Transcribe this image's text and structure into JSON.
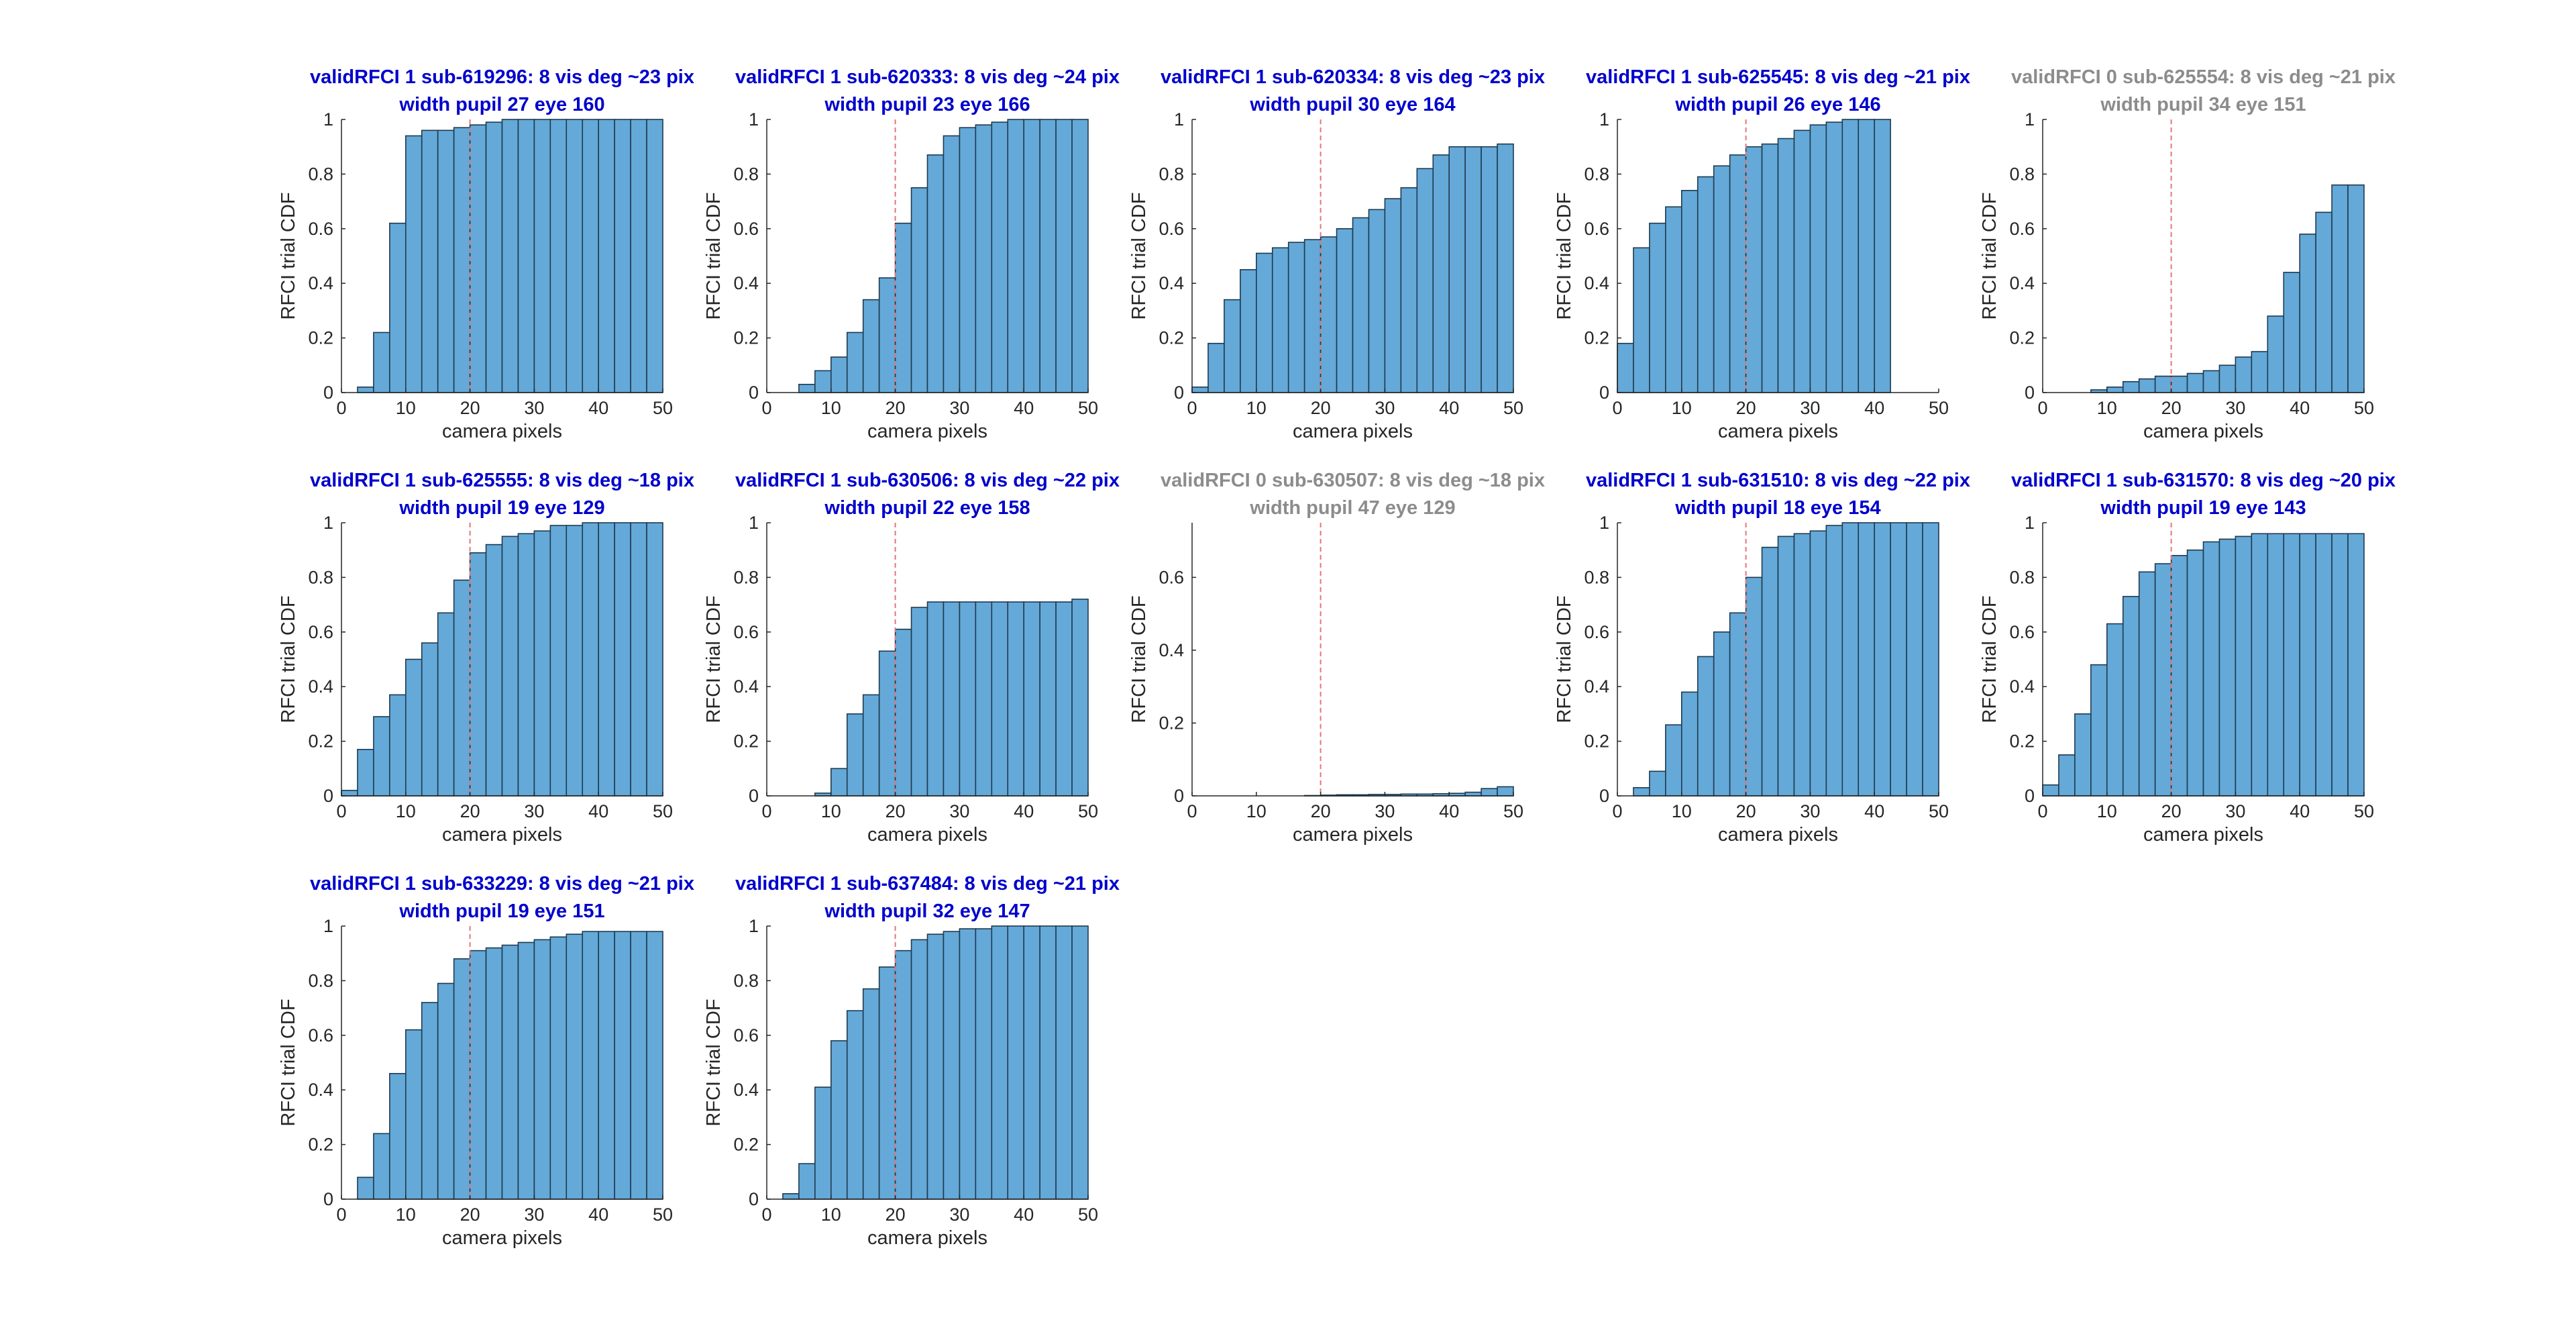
{
  "figure": {
    "colors": {
      "bar_fill": "#64a9d8",
      "bar_edge": "#1f3a4f",
      "ref_line": "#e0787a",
      "title_valid": "#0000cd",
      "title_invalid": "#8c8c8c",
      "axis": "#262626"
    }
  },
  "chart_data": [
    {
      "type": "bar",
      "title": [
        "validRFCI 1 sub-619296: 8 vis deg ~23 pix",
        "width pupil 27 eye 160"
      ],
      "valid": 1,
      "xlabel": "camera pixels",
      "ylabel": "RFCI trial CDF",
      "xlim": [
        0,
        50
      ],
      "ylim": [
        0,
        1
      ],
      "xticks": [
        0,
        10,
        20,
        30,
        40,
        50
      ],
      "yticks": [
        0,
        0.2,
        0.4,
        0.6,
        0.8,
        1
      ],
      "ytick_labels": [
        "0",
        "0.2",
        "0.4",
        "0.6",
        "0.8",
        "1"
      ],
      "bin_edges": [
        0,
        2.5,
        5,
        7.5,
        10,
        12.5,
        15,
        17.5,
        20,
        22.5,
        25,
        27.5,
        30,
        32.5,
        35,
        37.5,
        40,
        42.5,
        45,
        47.5,
        50
      ],
      "values": [
        0,
        0.02,
        0.22,
        0.62,
        0.94,
        0.96,
        0.96,
        0.97,
        0.98,
        0.99,
        1,
        1,
        1,
        1,
        1,
        1,
        1,
        1,
        1,
        1
      ],
      "reference_x": 20
    },
    {
      "type": "bar",
      "title": [
        "validRFCI 1 sub-620333: 8 vis deg ~24 pix",
        "width pupil 23 eye 166"
      ],
      "valid": 1,
      "xlabel": "camera pixels",
      "ylabel": "RFCI trial CDF",
      "xlim": [
        0,
        50
      ],
      "ylim": [
        0,
        1
      ],
      "xticks": [
        0,
        10,
        20,
        30,
        40,
        50
      ],
      "yticks": [
        0,
        0.2,
        0.4,
        0.6,
        0.8,
        1
      ],
      "ytick_labels": [
        "0",
        "0.2",
        "0.4",
        "0.6",
        "0.8",
        "1"
      ],
      "bin_edges": [
        0,
        2.5,
        5,
        7.5,
        10,
        12.5,
        15,
        17.5,
        20,
        22.5,
        25,
        27.5,
        30,
        32.5,
        35,
        37.5,
        40,
        42.5,
        45,
        47.5,
        50
      ],
      "values": [
        0,
        0,
        0.03,
        0.08,
        0.13,
        0.22,
        0.34,
        0.42,
        0.62,
        0.75,
        0.87,
        0.94,
        0.97,
        0.98,
        0.99,
        1,
        1,
        1,
        1,
        1
      ],
      "reference_x": 20
    },
    {
      "type": "bar",
      "title": [
        "validRFCI 1 sub-620334: 8 vis deg ~23 pix",
        "width pupil 30 eye 164"
      ],
      "valid": 1,
      "xlabel": "camera pixels",
      "ylabel": "RFCI trial CDF",
      "xlim": [
        0,
        50
      ],
      "ylim": [
        0,
        1
      ],
      "xticks": [
        0,
        10,
        20,
        30,
        40,
        50
      ],
      "yticks": [
        0,
        0.2,
        0.4,
        0.6,
        0.8,
        1
      ],
      "ytick_labels": [
        "0",
        "0.2",
        "0.4",
        "0.6",
        "0.8",
        "1"
      ],
      "bin_edges": [
        0,
        2.5,
        5,
        7.5,
        10,
        12.5,
        15,
        17.5,
        20,
        22.5,
        25,
        27.5,
        30,
        32.5,
        35,
        37.5,
        40,
        42.5,
        45,
        47.5,
        50
      ],
      "values": [
        0.02,
        0.18,
        0.34,
        0.45,
        0.51,
        0.53,
        0.55,
        0.56,
        0.57,
        0.6,
        0.64,
        0.67,
        0.71,
        0.75,
        0.82,
        0.87,
        0.9,
        0.9,
        0.9,
        0.91
      ],
      "reference_x": 20
    },
    {
      "type": "bar",
      "title": [
        "validRFCI 1 sub-625545: 8 vis deg ~21 pix",
        "width pupil 26 eye 146"
      ],
      "valid": 1,
      "xlabel": "camera pixels",
      "ylabel": "RFCI trial CDF",
      "xlim": [
        0,
        50
      ],
      "ylim": [
        0,
        1
      ],
      "xticks": [
        0,
        10,
        20,
        30,
        40,
        50
      ],
      "yticks": [
        0,
        0.2,
        0.4,
        0.6,
        0.8,
        1
      ],
      "ytick_labels": [
        "0",
        "0.2",
        "0.4",
        "0.6",
        "0.8",
        "1"
      ],
      "bin_edges": [
        0,
        2.5,
        5,
        7.5,
        10,
        12.5,
        15,
        17.5,
        20,
        22.5,
        25,
        27.5,
        30,
        32.5,
        35,
        37.5,
        40,
        42.5
      ],
      "values": [
        0.18,
        0.53,
        0.62,
        0.68,
        0.74,
        0.79,
        0.83,
        0.87,
        0.9,
        0.91,
        0.93,
        0.96,
        0.98,
        0.99,
        1,
        1,
        1
      ],
      "reference_x": 20
    },
    {
      "type": "bar",
      "title": [
        "validRFCI 0 sub-625554: 8 vis deg ~21 pix",
        "width pupil 34 eye 151"
      ],
      "valid": 0,
      "xlabel": "camera pixels",
      "ylabel": "RFCI trial CDF",
      "xlim": [
        0,
        50
      ],
      "ylim": [
        0,
        1
      ],
      "xticks": [
        0,
        10,
        20,
        30,
        40,
        50
      ],
      "yticks": [
        0,
        0.2,
        0.4,
        0.6,
        0.8,
        1
      ],
      "ytick_labels": [
        "0",
        "0.2",
        "0.4",
        "0.6",
        "0.8",
        "1"
      ],
      "bin_edges": [
        0,
        2.5,
        5,
        7.5,
        10,
        12.5,
        15,
        17.5,
        20,
        22.5,
        25,
        27.5,
        30,
        32.5,
        35,
        37.5,
        40,
        42.5,
        45,
        47.5,
        50
      ],
      "values": [
        0,
        0,
        0,
        0.01,
        0.02,
        0.04,
        0.05,
        0.06,
        0.06,
        0.07,
        0.08,
        0.1,
        0.13,
        0.15,
        0.28,
        0.44,
        0.58,
        0.66,
        0.76,
        0.76
      ],
      "reference_x": 20
    },
    {
      "type": "bar",
      "title": [
        "validRFCI 1 sub-625555: 8 vis deg ~18 pix",
        "width pupil 19 eye 129"
      ],
      "valid": 1,
      "xlabel": "camera pixels",
      "ylabel": "RFCI trial CDF",
      "xlim": [
        0,
        50
      ],
      "ylim": [
        0,
        1
      ],
      "xticks": [
        0,
        10,
        20,
        30,
        40,
        50
      ],
      "yticks": [
        0,
        0.2,
        0.4,
        0.6,
        0.8,
        1
      ],
      "ytick_labels": [
        "0",
        "0.2",
        "0.4",
        "0.6",
        "0.8",
        "1"
      ],
      "bin_edges": [
        0,
        2.5,
        5,
        7.5,
        10,
        12.5,
        15,
        17.5,
        20,
        22.5,
        25,
        27.5,
        30,
        32.5,
        35,
        37.5,
        40,
        42.5,
        45,
        47.5,
        50
      ],
      "values": [
        0.02,
        0.17,
        0.29,
        0.37,
        0.5,
        0.56,
        0.67,
        0.79,
        0.89,
        0.92,
        0.95,
        0.96,
        0.97,
        0.99,
        0.99,
        1,
        1,
        1,
        1,
        1
      ],
      "reference_x": 20
    },
    {
      "type": "bar",
      "title": [
        "validRFCI 1 sub-630506: 8 vis deg ~22 pix",
        "width pupil 22 eye 158"
      ],
      "valid": 1,
      "xlabel": "camera pixels",
      "ylabel": "RFCI trial CDF",
      "xlim": [
        0,
        50
      ],
      "ylim": [
        0,
        1
      ],
      "xticks": [
        0,
        10,
        20,
        30,
        40,
        50
      ],
      "yticks": [
        0,
        0.2,
        0.4,
        0.6,
        0.8,
        1
      ],
      "ytick_labels": [
        "0",
        "0.2",
        "0.4",
        "0.6",
        "0.8",
        "1"
      ],
      "bin_edges": [
        0,
        2.5,
        5,
        7.5,
        10,
        12.5,
        15,
        17.5,
        20,
        22.5,
        25,
        27.5,
        30,
        32.5,
        35,
        37.5,
        40,
        42.5,
        45,
        47.5,
        50
      ],
      "values": [
        0,
        0,
        0,
        0.01,
        0.1,
        0.3,
        0.37,
        0.53,
        0.61,
        0.69,
        0.71,
        0.71,
        0.71,
        0.71,
        0.71,
        0.71,
        0.71,
        0.71,
        0.71,
        0.72
      ],
      "reference_x": 20
    },
    {
      "type": "bar",
      "title": [
        "validRFCI 0 sub-630507: 8 vis deg ~18 pix",
        "width pupil 47 eye 129"
      ],
      "valid": 0,
      "xlabel": "camera pixels",
      "ylabel": "RFCI trial CDF",
      "xlim": [
        0,
        50
      ],
      "ylim": [
        0,
        0.75
      ],
      "xticks": [
        0,
        10,
        20,
        30,
        40,
        50
      ],
      "yticks": [
        0,
        0.2,
        0.4,
        0.6
      ],
      "ytick_labels": [
        "0",
        "0.2",
        "0.4",
        "0.6"
      ],
      "bin_edges": [
        0,
        2.5,
        5,
        7.5,
        10,
        12.5,
        15,
        17.5,
        20,
        22.5,
        25,
        27.5,
        30,
        32.5,
        35,
        37.5,
        40,
        42.5,
        45,
        47.5,
        50
      ],
      "values": [
        0,
        0,
        0,
        0,
        0,
        0,
        0,
        0.001,
        0.002,
        0.003,
        0.003,
        0.004,
        0.004,
        0.005,
        0.005,
        0.006,
        0.007,
        0.01,
        0.02,
        0.025
      ],
      "reference_x": 20
    },
    {
      "type": "bar",
      "title": [
        "validRFCI 1 sub-631510: 8 vis deg ~22 pix",
        "width pupil 18 eye 154"
      ],
      "valid": 1,
      "xlabel": "camera pixels",
      "ylabel": "RFCI trial CDF",
      "xlim": [
        0,
        50
      ],
      "ylim": [
        0,
        1
      ],
      "xticks": [
        0,
        10,
        20,
        30,
        40,
        50
      ],
      "yticks": [
        0,
        0.2,
        0.4,
        0.6,
        0.8,
        1
      ],
      "ytick_labels": [
        "0",
        "0.2",
        "0.4",
        "0.6",
        "0.8",
        "1"
      ],
      "bin_edges": [
        0,
        2.5,
        5,
        7.5,
        10,
        12.5,
        15,
        17.5,
        20,
        22.5,
        25,
        27.5,
        30,
        32.5,
        35,
        37.5,
        40,
        42.5,
        45,
        47.5,
        50
      ],
      "values": [
        0,
        0.03,
        0.09,
        0.26,
        0.38,
        0.51,
        0.6,
        0.67,
        0.8,
        0.91,
        0.95,
        0.96,
        0.97,
        0.99,
        1,
        1,
        1,
        1,
        1,
        1
      ],
      "reference_x": 20
    },
    {
      "type": "bar",
      "title": [
        "validRFCI 1 sub-631570: 8 vis deg ~20 pix",
        "width pupil 19 eye 143"
      ],
      "valid": 1,
      "xlabel": "camera pixels",
      "ylabel": "RFCI trial CDF",
      "xlim": [
        0,
        50
      ],
      "ylim": [
        0,
        1
      ],
      "xticks": [
        0,
        10,
        20,
        30,
        40,
        50
      ],
      "yticks": [
        0,
        0.2,
        0.4,
        0.6,
        0.8,
        1
      ],
      "ytick_labels": [
        "0",
        "0.2",
        "0.4",
        "0.6",
        "0.8",
        "1"
      ],
      "bin_edges": [
        0,
        2.5,
        5,
        7.5,
        10,
        12.5,
        15,
        17.5,
        20,
        22.5,
        25,
        27.5,
        30,
        32.5,
        35,
        37.5,
        40,
        42.5,
        45,
        47.5,
        50
      ],
      "values": [
        0.04,
        0.15,
        0.3,
        0.48,
        0.63,
        0.73,
        0.82,
        0.85,
        0.88,
        0.9,
        0.93,
        0.94,
        0.95,
        0.96,
        0.96,
        0.96,
        0.96,
        0.96,
        0.96,
        0.96
      ],
      "reference_x": 20
    },
    {
      "type": "bar",
      "title": [
        "validRFCI 1 sub-633229: 8 vis deg ~21 pix",
        "width pupil 19 eye 151"
      ],
      "valid": 1,
      "xlabel": "camera pixels",
      "ylabel": "RFCI trial CDF",
      "xlim": [
        0,
        50
      ],
      "ylim": [
        0,
        1
      ],
      "xticks": [
        0,
        10,
        20,
        30,
        40,
        50
      ],
      "yticks": [
        0,
        0.2,
        0.4,
        0.6,
        0.8,
        1
      ],
      "ytick_labels": [
        "0",
        "0.2",
        "0.4",
        "0.6",
        "0.8",
        "1"
      ],
      "bin_edges": [
        0,
        2.5,
        5,
        7.5,
        10,
        12.5,
        15,
        17.5,
        20,
        22.5,
        25,
        27.5,
        30,
        32.5,
        35,
        37.5,
        40,
        42.5,
        45,
        47.5,
        50
      ],
      "values": [
        0,
        0.08,
        0.24,
        0.46,
        0.62,
        0.72,
        0.79,
        0.88,
        0.91,
        0.92,
        0.93,
        0.94,
        0.95,
        0.96,
        0.97,
        0.98,
        0.98,
        0.98,
        0.98,
        0.98
      ],
      "reference_x": 20
    },
    {
      "type": "bar",
      "title": [
        "validRFCI 1 sub-637484: 8 vis deg ~21 pix",
        "width pupil 32 eye 147"
      ],
      "valid": 1,
      "xlabel": "camera pixels",
      "ylabel": "RFCI trial CDF",
      "xlim": [
        0,
        50
      ],
      "ylim": [
        0,
        1
      ],
      "xticks": [
        0,
        10,
        20,
        30,
        40,
        50
      ],
      "yticks": [
        0,
        0.2,
        0.4,
        0.6,
        0.8,
        1
      ],
      "ytick_labels": [
        "0",
        "0.2",
        "0.4",
        "0.6",
        "0.8",
        "1"
      ],
      "bin_edges": [
        0,
        2.5,
        5,
        7.5,
        10,
        12.5,
        15,
        17.5,
        20,
        22.5,
        25,
        27.5,
        30,
        32.5,
        35,
        37.5,
        40,
        42.5,
        45,
        47.5,
        50
      ],
      "values": [
        0,
        0.02,
        0.13,
        0.41,
        0.58,
        0.69,
        0.77,
        0.85,
        0.91,
        0.95,
        0.97,
        0.98,
        0.99,
        0.99,
        1,
        1,
        1,
        1,
        1,
        1
      ],
      "reference_x": 20
    }
  ]
}
